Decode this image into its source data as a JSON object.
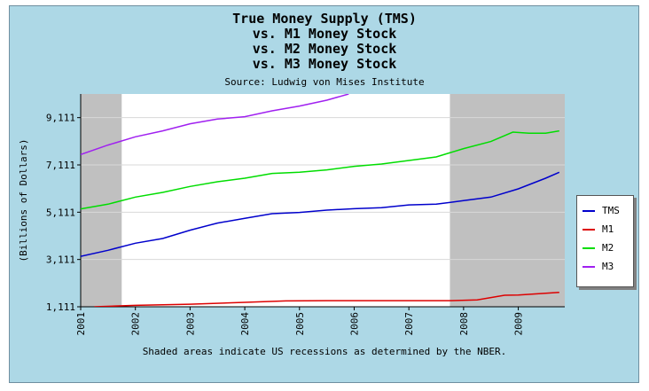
{
  "chart_data": {
    "type": "line",
    "title_lines": [
      "True Money Supply (TMS)",
      "vs. M1 Money Stock",
      "vs. M2 Money Stock",
      "vs. M3 Money Stock"
    ],
    "subtitle": "Source: Ludwig von Mises Institute",
    "footer": "Shaded areas indicate US recessions as determined by the NBER.",
    "xlabel": "",
    "ylabel": "(Billions of Dollars)",
    "xlim": [
      2001.0,
      2009.85
    ],
    "ylim": [
      1111,
      10111
    ],
    "yticks": [
      "1,111",
      "3,111",
      "5,111",
      "7,111",
      "9,111"
    ],
    "ytick_values": [
      1111,
      3111,
      5111,
      7111,
      9111
    ],
    "xticks": [
      "2001",
      "2002",
      "2003",
      "2004",
      "2005",
      "2006",
      "2007",
      "2008",
      "2009"
    ],
    "xtick_values": [
      2001,
      2002,
      2003,
      2004,
      2005,
      2006,
      2007,
      2008,
      2009
    ],
    "recessions": [
      [
        2001.0,
        2001.75
      ],
      [
        2007.75,
        2009.85
      ]
    ],
    "grid": true,
    "legend_position": "right",
    "series": [
      {
        "name": "TMS",
        "color": "#0000cc",
        "x": [
          2001.0,
          2001.5,
          2002.0,
          2002.5,
          2003.0,
          2003.5,
          2004.0,
          2004.5,
          2005.0,
          2005.5,
          2006.0,
          2006.5,
          2007.0,
          2007.5,
          2008.0,
          2008.5,
          2009.0,
          2009.5,
          2009.75
        ],
        "values": [
          3240,
          3500,
          3800,
          4000,
          4350,
          4650,
          4850,
          5050,
          5100,
          5200,
          5260,
          5300,
          5420,
          5450,
          5600,
          5750,
          6100,
          6550,
          6800
        ]
      },
      {
        "name": "M1",
        "color": "#dd0000",
        "x": [
          2001.25,
          2002.0,
          2003.0,
          2004.0,
          2004.75,
          2005.5,
          2006.0,
          2006.75,
          2007.5,
          2007.75,
          2008.25,
          2008.75,
          2009.0,
          2009.5,
          2009.75
        ],
        "values": [
          1111,
          1170,
          1220,
          1300,
          1360,
          1370,
          1370,
          1370,
          1370,
          1370,
          1400,
          1600,
          1610,
          1680,
          1720
        ]
      },
      {
        "name": "M2",
        "color": "#00dd00",
        "x": [
          2001.0,
          2001.5,
          2002.0,
          2002.5,
          2003.0,
          2003.5,
          2004.0,
          2004.5,
          2005.0,
          2005.5,
          2006.0,
          2006.5,
          2007.0,
          2007.5,
          2008.0,
          2008.5,
          2008.9,
          2009.2,
          2009.5,
          2009.75
        ],
        "values": [
          5250,
          5450,
          5750,
          5950,
          6200,
          6400,
          6550,
          6750,
          6800,
          6900,
          7050,
          7150,
          7300,
          7450,
          7800,
          8100,
          8500,
          8450,
          8450,
          8550
        ]
      },
      {
        "name": "M3",
        "color": "#a020f0",
        "x": [
          2001.0,
          2001.5,
          2002.0,
          2002.5,
          2003.0,
          2003.5,
          2004.0,
          2004.5,
          2005.0,
          2005.5,
          2005.9
        ],
        "values": [
          7550,
          7950,
          8300,
          8550,
          8850,
          9050,
          9150,
          9400,
          9600,
          9850,
          10111
        ]
      }
    ]
  }
}
